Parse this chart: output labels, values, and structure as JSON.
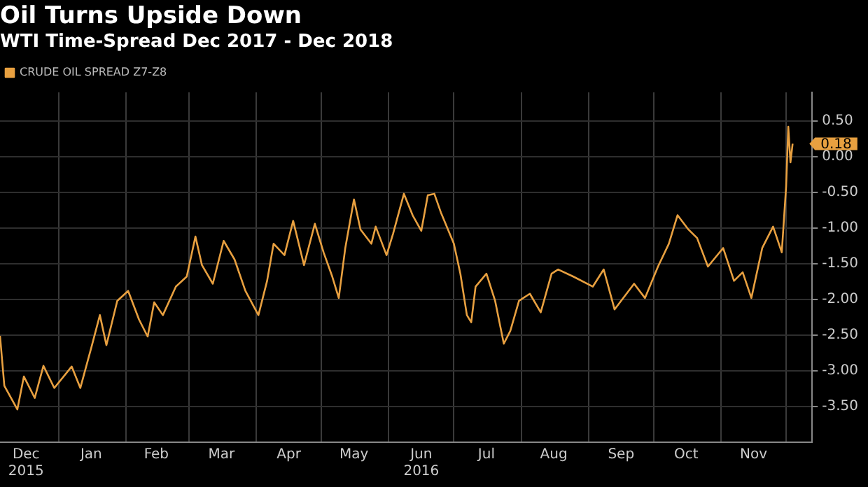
{
  "chart_data": {
    "type": "line",
    "title": "Oil Turns Upside Down",
    "subtitle": "WTI Time-Spread Dec 2017 - Dec 2018",
    "x": [
      "2015-12-05",
      "2015-12-07",
      "2015-12-13",
      "2015-12-16",
      "2015-12-21",
      "2015-12-25",
      "2015-12-30",
      "2016-01-07",
      "2016-01-11",
      "2016-01-16",
      "2016-01-20",
      "2016-01-23",
      "2016-01-28",
      "2016-02-02",
      "2016-02-07",
      "2016-02-11",
      "2016-02-14",
      "2016-02-18",
      "2016-02-24",
      "2016-02-29",
      "2016-03-04",
      "2016-03-07",
      "2016-03-12",
      "2016-03-17",
      "2016-03-22",
      "2016-03-27",
      "2016-04-02",
      "2016-04-06",
      "2016-04-09",
      "2016-04-14",
      "2016-04-18",
      "2016-04-23",
      "2016-04-28",
      "2016-05-02",
      "2016-05-06",
      "2016-05-09",
      "2016-05-12",
      "2016-05-16",
      "2016-05-19",
      "2016-05-24",
      "2016-05-26",
      "2016-05-31",
      "2016-06-03",
      "2016-06-08",
      "2016-06-12",
      "2016-06-16",
      "2016-06-19",
      "2016-06-22",
      "2016-06-25",
      "2016-07-01",
      "2016-07-04",
      "2016-07-07",
      "2016-07-09",
      "2016-07-11",
      "2016-07-16",
      "2016-07-20",
      "2016-07-24",
      "2016-07-27",
      "2016-07-31",
      "2016-08-05",
      "2016-08-10",
      "2016-08-15",
      "2016-08-18",
      "2016-08-25",
      "2016-09-03",
      "2016-09-08",
      "2016-09-13",
      "2016-09-22",
      "2016-09-27",
      "2016-10-03",
      "2016-10-08",
      "2016-10-12",
      "2016-10-17",
      "2016-10-21",
      "2016-10-26",
      "2016-11-02",
      "2016-11-07",
      "2016-11-11",
      "2016-11-15",
      "2016-11-20",
      "2016-11-25",
      "2016-11-29",
      "2016-12-01",
      "2016-12-02",
      "2016-12-03",
      "2016-12-04"
    ],
    "series": [
      {
        "name": "CRUDE OIL SPREAD Z7-Z8",
        "color": "#e8a040",
        "values": [
          -2.51,
          -3.21,
          -3.54,
          -3.08,
          -3.38,
          -2.93,
          -3.24,
          -2.94,
          -3.24,
          -2.68,
          -2.22,
          -2.64,
          -2.02,
          -1.88,
          -2.28,
          -2.52,
          -2.04,
          -2.22,
          -1.82,
          -1.68,
          -1.12,
          -1.52,
          -1.78,
          -1.18,
          -1.44,
          -1.88,
          -2.22,
          -1.74,
          -1.22,
          -1.38,
          -0.9,
          -1.52,
          -0.94,
          -1.34,
          -1.68,
          -1.98,
          -1.28,
          -0.6,
          -1.02,
          -1.22,
          -0.98,
          -1.38,
          -1.08,
          -0.52,
          -0.82,
          -1.04,
          -0.54,
          -0.52,
          -0.78,
          -1.22,
          -1.64,
          -2.22,
          -2.32,
          -1.82,
          -1.64,
          -2.02,
          -2.62,
          -2.44,
          -2.02,
          -1.92,
          -2.18,
          -1.64,
          -1.58,
          -1.68,
          -1.82,
          -1.58,
          -2.14,
          -1.78,
          -1.98,
          -1.54,
          -1.22,
          -0.82,
          -1.02,
          -1.14,
          -1.54,
          -1.28,
          -1.74,
          -1.62,
          -1.98,
          -1.28,
          -0.98,
          -1.34,
          -0.42,
          0.42,
          -0.08,
          0.18
        ]
      }
    ],
    "xlim": [
      "2015-12-05",
      "2016-12-13"
    ],
    "xticks": [
      {
        "value": "2015-12-17",
        "label": "Dec\n2015"
      },
      {
        "value": "2016-01-01",
        "label": null
      },
      {
        "value": "2016-01-16",
        "label": "Jan"
      },
      {
        "value": "2016-02-01",
        "label": null
      },
      {
        "value": "2016-02-15",
        "label": "Feb"
      },
      {
        "value": "2016-03-01",
        "label": null
      },
      {
        "value": "2016-03-16",
        "label": "Mar"
      },
      {
        "value": "2016-04-01",
        "label": null
      },
      {
        "value": "2016-04-16",
        "label": "Apr"
      },
      {
        "value": "2016-05-01",
        "label": null
      },
      {
        "value": "2016-05-16",
        "label": "May"
      },
      {
        "value": "2016-06-01",
        "label": null
      },
      {
        "value": "2016-06-16",
        "label": "Jun\n2016"
      },
      {
        "value": "2016-07-01",
        "label": null
      },
      {
        "value": "2016-07-16",
        "label": "Jul"
      },
      {
        "value": "2016-08-01",
        "label": null
      },
      {
        "value": "2016-08-16",
        "label": "Aug"
      },
      {
        "value": "2016-09-01",
        "label": null
      },
      {
        "value": "2016-09-16",
        "label": "Sep"
      },
      {
        "value": "2016-10-01",
        "label": null
      },
      {
        "value": "2016-10-16",
        "label": "Oct"
      },
      {
        "value": "2016-11-01",
        "label": null
      },
      {
        "value": "2016-11-16",
        "label": "Nov"
      },
      {
        "value": "2016-12-01",
        "label": null
      }
    ],
    "ylim": [
      -4,
      0.9
    ],
    "yticks": [
      {
        "value": -3.5,
        "label": "-3.50"
      },
      {
        "value": -3,
        "label": "-3.00"
      },
      {
        "value": -2.5,
        "label": "-2.50"
      },
      {
        "value": -2,
        "label": "-2.00"
      },
      {
        "value": -1.5,
        "label": "-1.50"
      },
      {
        "value": -1,
        "label": "-1.00"
      },
      {
        "value": -0.5,
        "label": "-0.50"
      },
      {
        "value": 0,
        "label": "0.00"
      },
      {
        "value": 0.5,
        "label": "0.50"
      }
    ],
    "annotations": [
      {
        "text": "0.18",
        "x": "2016-12-04",
        "y": 0.18
      }
    ],
    "grid": true,
    "legend": "top left",
    "marker": "none",
    "line_style": "solid"
  }
}
